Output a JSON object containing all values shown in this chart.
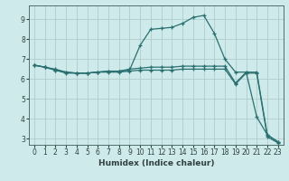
{
  "title": "",
  "xlabel": "Humidex (Indice chaleur)",
  "xlim": [
    -0.5,
    23.5
  ],
  "ylim": [
    2.7,
    9.7
  ],
  "yticks": [
    3,
    4,
    5,
    6,
    7,
    8,
    9
  ],
  "xticks": [
    0,
    1,
    2,
    3,
    4,
    5,
    6,
    7,
    8,
    9,
    10,
    11,
    12,
    13,
    14,
    15,
    16,
    17,
    18,
    19,
    20,
    21,
    22,
    23
  ],
  "bg_color": "#ceeaea",
  "grid_color": "#b0cccc",
  "line_color": "#2a7070",
  "line1_x": [
    0,
    1,
    2,
    3,
    4,
    5,
    6,
    7,
    8,
    9,
    10,
    11,
    12,
    13,
    14,
    15,
    16,
    17,
    18,
    19,
    20,
    21,
    22,
    23
  ],
  "line1_y": [
    6.7,
    6.6,
    6.5,
    6.35,
    6.3,
    6.3,
    6.35,
    6.4,
    6.4,
    6.45,
    7.7,
    8.5,
    8.55,
    8.6,
    8.8,
    9.1,
    9.2,
    8.3,
    7.0,
    6.35,
    6.35,
    4.1,
    3.2,
    2.85
  ],
  "line2_x": [
    0,
    1,
    2,
    3,
    4,
    5,
    6,
    7,
    8,
    9,
    10,
    11,
    12,
    13,
    14,
    15,
    16,
    17,
    18,
    19,
    20,
    21,
    22,
    23
  ],
  "line2_y": [
    6.7,
    6.6,
    6.45,
    6.35,
    6.3,
    6.3,
    6.35,
    6.4,
    6.4,
    6.5,
    6.55,
    6.6,
    6.6,
    6.6,
    6.65,
    6.65,
    6.65,
    6.65,
    6.65,
    5.8,
    6.35,
    6.35,
    3.2,
    2.85
  ],
  "line3_x": [
    0,
    1,
    2,
    3,
    4,
    5,
    6,
    7,
    8,
    9,
    10,
    11,
    12,
    13,
    14,
    15,
    16,
    17,
    18,
    19,
    20,
    21,
    22,
    23
  ],
  "line3_y": [
    6.7,
    6.6,
    6.45,
    6.3,
    6.3,
    6.3,
    6.35,
    6.35,
    6.35,
    6.4,
    6.45,
    6.45,
    6.45,
    6.45,
    6.5,
    6.5,
    6.5,
    6.5,
    6.5,
    5.75,
    6.3,
    6.3,
    3.1,
    2.8
  ]
}
